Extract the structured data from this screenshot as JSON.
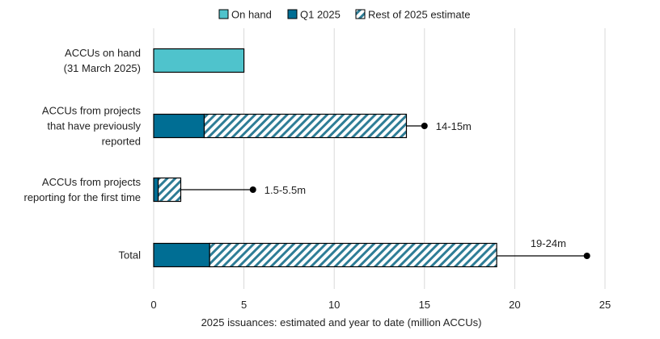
{
  "chart_data": {
    "type": "bar",
    "orientation": "horizontal",
    "stacked": true,
    "xlabel": "2025 issuances: estimated and year to date (million ACCUs)",
    "xlim": [
      0,
      25
    ],
    "xticks": [
      0,
      5,
      10,
      15,
      20,
      25
    ],
    "grid": "vertical",
    "legend_position": "top",
    "categories": [
      [
        "ACCUs on hand",
        "(31 March 2025)"
      ],
      [
        "ACCUs from projects",
        "that have previously",
        "reported"
      ],
      [
        "ACCUs from projects",
        "reporting for the first time"
      ],
      [
        "Total"
      ]
    ],
    "series": [
      {
        "name": "On hand",
        "color": "#4fc3cc",
        "pattern": "solid",
        "values": [
          5.0,
          0,
          0,
          0
        ]
      },
      {
        "name": "Q1 2025",
        "color": "#006e94",
        "pattern": "solid",
        "values": [
          0,
          2.8,
          0.25,
          3.1
        ]
      },
      {
        "name": "Rest of 2025 estimate",
        "color": "#2e7d96",
        "pattern": "hatch",
        "values": [
          0,
          11.2,
          1.25,
          15.9
        ]
      }
    ],
    "range_annotations": [
      {
        "category_index": 1,
        "from": 14,
        "to": 15,
        "label": "14-15m"
      },
      {
        "category_index": 2,
        "from": 1.5,
        "to": 5.5,
        "label": "1.5-5.5m"
      },
      {
        "category_index": 3,
        "from": 19,
        "to": 24,
        "label": "19-24m"
      }
    ]
  }
}
